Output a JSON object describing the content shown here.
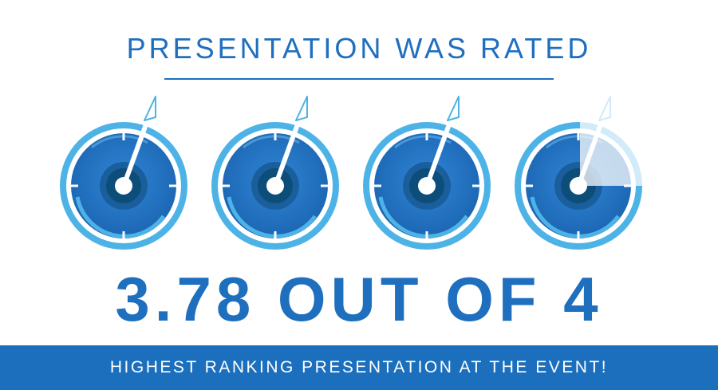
{
  "header": {
    "title": "PRESENTATION WAS RATED"
  },
  "rating": {
    "text": "3.78 OUT OF 4",
    "value": 3.78,
    "max": 4,
    "gauge_fill": [
      1,
      1,
      1,
      0.78
    ]
  },
  "banner": {
    "text": "HIGHEST RANKING PRESENTATION AT THE EVENT!"
  },
  "colors": {
    "brand_blue": "#1f6fbf",
    "light_blue": "#4db3e6",
    "dark_center": "#0d4d7a",
    "banner_blue": "#1b6fbd"
  },
  "icons": [
    "gauge-icon",
    "gauge-icon",
    "gauge-icon",
    "gauge-icon"
  ]
}
